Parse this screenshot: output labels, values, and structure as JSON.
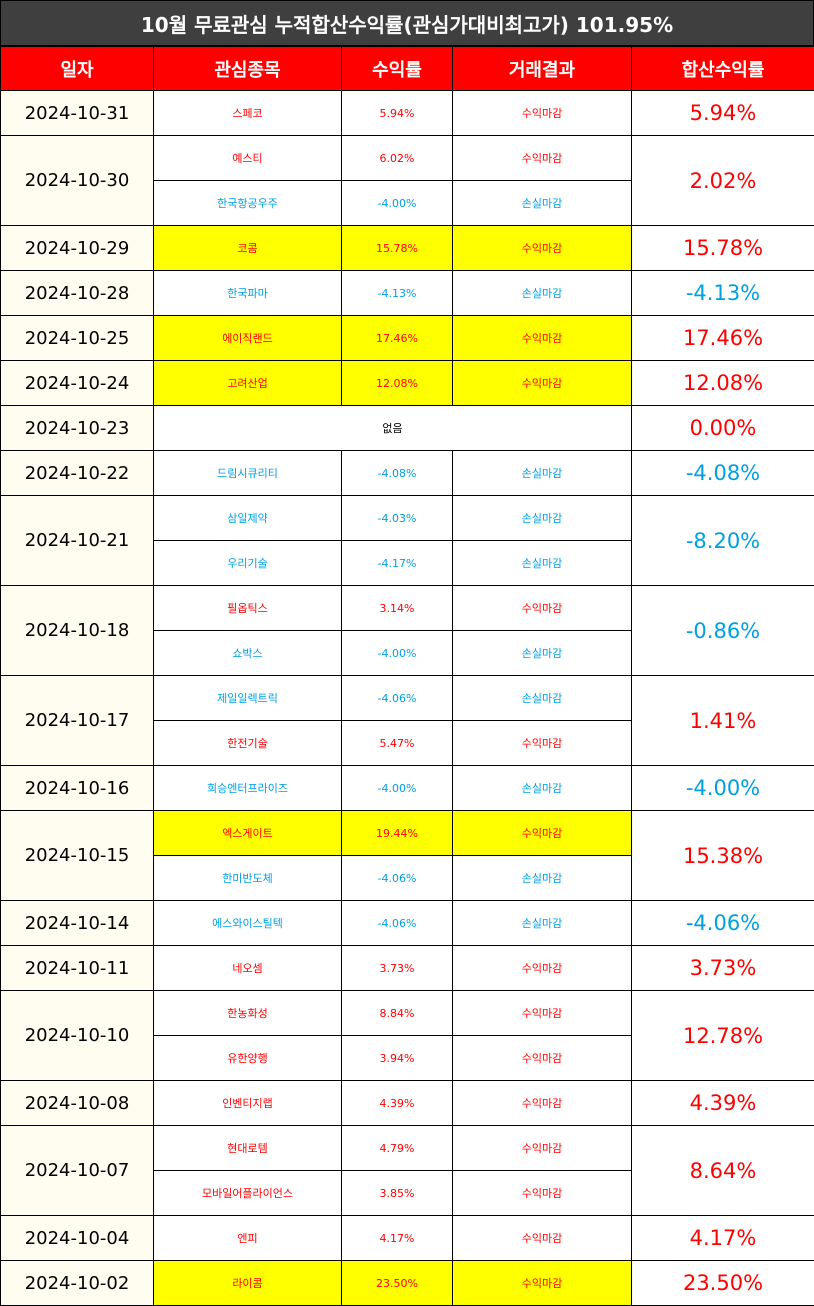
{
  "title": "10월 무료관심 누적합산수익률(관심가대비최고가) 101.95%",
  "headers": [
    "일자",
    "관심종목",
    "수익률",
    "거래결과",
    "합산수익률"
  ],
  "colors": {
    "positive": "#ff0000",
    "negative": "#00a0e0",
    "highlight": "#ffff00",
    "header_bg": "#ff0000",
    "title_bg": "#3f3f3f"
  },
  "groups": [
    {
      "date": "2024-10-31",
      "total": "5.94%",
      "total_sign": "pos",
      "rows": [
        {
          "stock": "스페코",
          "return": "5.94%",
          "result": "수익마감",
          "sign": "pos",
          "hl": false
        }
      ]
    },
    {
      "date": "2024-10-30",
      "total": "2.02%",
      "total_sign": "pos",
      "rows": [
        {
          "stock": "예스티",
          "return": "6.02%",
          "result": "수익마감",
          "sign": "pos",
          "hl": false
        },
        {
          "stock": "한국항공우주",
          "return": "-4.00%",
          "result": "손실마감",
          "sign": "neg",
          "hl": false
        }
      ]
    },
    {
      "date": "2024-10-29",
      "total": "15.78%",
      "total_sign": "pos",
      "rows": [
        {
          "stock": "코콤",
          "return": "15.78%",
          "result": "수익마감",
          "sign": "pos",
          "hl": true
        }
      ]
    },
    {
      "date": "2024-10-28",
      "total": "-4.13%",
      "total_sign": "neg",
      "rows": [
        {
          "stock": "한국파마",
          "return": "-4.13%",
          "result": "손실마감",
          "sign": "neg",
          "hl": false
        }
      ]
    },
    {
      "date": "2024-10-25",
      "total": "17.46%",
      "total_sign": "pos",
      "rows": [
        {
          "stock": "에이직랜드",
          "return": "17.46%",
          "result": "수익마감",
          "sign": "pos",
          "hl": true
        }
      ]
    },
    {
      "date": "2024-10-24",
      "total": "12.08%",
      "total_sign": "pos",
      "rows": [
        {
          "stock": "고려산업",
          "return": "12.08%",
          "result": "수익마감",
          "sign": "pos",
          "hl": true
        }
      ]
    },
    {
      "date": "2024-10-23",
      "total": "0.00%",
      "total_sign": "pos",
      "none": "없음",
      "rows": []
    },
    {
      "date": "2024-10-22",
      "total": "-4.08%",
      "total_sign": "neg",
      "rows": [
        {
          "stock": "드림시큐리티",
          "return": "-4.08%",
          "result": "손실마감",
          "sign": "neg",
          "hl": false
        }
      ]
    },
    {
      "date": "2024-10-21",
      "total": "-8.20%",
      "total_sign": "neg",
      "rows": [
        {
          "stock": "삼일제약",
          "return": "-4.03%",
          "result": "손실마감",
          "sign": "neg",
          "hl": false
        },
        {
          "stock": "우리기술",
          "return": "-4.17%",
          "result": "손실마감",
          "sign": "neg",
          "hl": false
        }
      ]
    },
    {
      "date": "2024-10-18",
      "total": "-0.86%",
      "total_sign": "neg",
      "rows": [
        {
          "stock": "필옵틱스",
          "return": "3.14%",
          "result": "수익마감",
          "sign": "pos",
          "hl": false
        },
        {
          "stock": "쇼박스",
          "return": "-4.00%",
          "result": "손실마감",
          "sign": "neg",
          "hl": false
        }
      ]
    },
    {
      "date": "2024-10-17",
      "total": "1.41%",
      "total_sign": "pos",
      "rows": [
        {
          "stock": "제일일렉트릭",
          "return": "-4.06%",
          "result": "손실마감",
          "sign": "neg",
          "hl": false
        },
        {
          "stock": "한전기술",
          "return": "5.47%",
          "result": "수익마감",
          "sign": "pos",
          "hl": false
        }
      ]
    },
    {
      "date": "2024-10-16",
      "total": "-4.00%",
      "total_sign": "neg",
      "rows": [
        {
          "stock": "희승엔터프라이즈",
          "return": "-4.00%",
          "result": "손실마감",
          "sign": "neg",
          "hl": false
        }
      ]
    },
    {
      "date": "2024-10-15",
      "total": "15.38%",
      "total_sign": "pos",
      "rows": [
        {
          "stock": "엑스게이트",
          "return": "19.44%",
          "result": "수익마감",
          "sign": "pos",
          "hl": true
        },
        {
          "stock": "한미반도체",
          "return": "-4.06%",
          "result": "손실마감",
          "sign": "neg",
          "hl": false
        }
      ]
    },
    {
      "date": "2024-10-14",
      "total": "-4.06%",
      "total_sign": "neg",
      "rows": [
        {
          "stock": "에스와이스틸텍",
          "return": "-4.06%",
          "result": "손실마감",
          "sign": "neg",
          "hl": false
        }
      ]
    },
    {
      "date": "2024-10-11",
      "total": "3.73%",
      "total_sign": "pos",
      "rows": [
        {
          "stock": "네오셈",
          "return": "3.73%",
          "result": "수익마감",
          "sign": "pos",
          "hl": false
        }
      ]
    },
    {
      "date": "2024-10-10",
      "total": "12.78%",
      "total_sign": "pos",
      "rows": [
        {
          "stock": "한농화성",
          "return": "8.84%",
          "result": "수익마감",
          "sign": "pos",
          "hl": false
        },
        {
          "stock": "유한양행",
          "return": "3.94%",
          "result": "수익마감",
          "sign": "pos",
          "hl": false
        }
      ]
    },
    {
      "date": "2024-10-08",
      "total": "4.39%",
      "total_sign": "pos",
      "rows": [
        {
          "stock": "인벤티지랩",
          "return": "4.39%",
          "result": "수익마감",
          "sign": "pos",
          "hl": false
        }
      ]
    },
    {
      "date": "2024-10-07",
      "total": "8.64%",
      "total_sign": "pos",
      "rows": [
        {
          "stock": "현대로템",
          "return": "4.79%",
          "result": "수익마감",
          "sign": "pos",
          "hl": false
        },
        {
          "stock": "모바일어플라이언스",
          "return": "3.85%",
          "result": "수익마감",
          "sign": "pos",
          "hl": false
        }
      ]
    },
    {
      "date": "2024-10-04",
      "total": "4.17%",
      "total_sign": "pos",
      "rows": [
        {
          "stock": "엔피",
          "return": "4.17%",
          "result": "수익마감",
          "sign": "pos",
          "hl": false
        }
      ]
    },
    {
      "date": "2024-10-02",
      "total": "23.50%",
      "total_sign": "pos",
      "rows": [
        {
          "stock": "라이콤",
          "return": "23.50%",
          "result": "수익마감",
          "sign": "pos",
          "hl": true
        }
      ]
    }
  ]
}
